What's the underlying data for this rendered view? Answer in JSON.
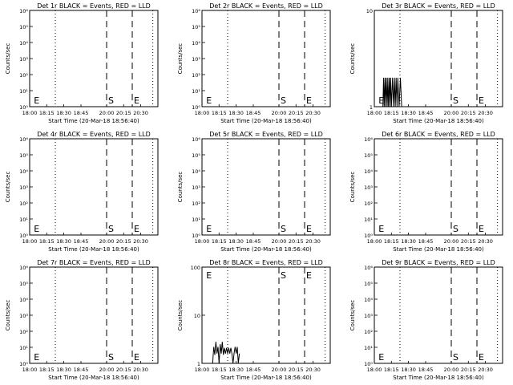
{
  "colors": {
    "background": "#ffffff",
    "axis": "#000000",
    "events": "#000000",
    "lld": "#ff0000"
  },
  "xtick_labels": [
    "18:00",
    "18:15",
    "18:30",
    "18:45",
    "20:00",
    "20:15",
    "20:30"
  ],
  "marker_labels": {
    "start": "E",
    "s": "S",
    "e": "E"
  },
  "chart_data": [
    {
      "id": "p1",
      "type": "line",
      "title": "Det 1r BLACK = Events, RED = LLD",
      "xlabel": "Start Time (20-Mar-18 18:56:40)",
      "ylabel": "Counts/sec",
      "yscale": "log",
      "ytick_labels": [
        "10⁰",
        "10¹",
        "10²",
        "10³",
        "10⁴",
        "10⁵",
        "10⁶"
      ],
      "ylim": [
        1,
        1000000
      ],
      "series": []
    },
    {
      "id": "p2",
      "type": "line",
      "title": "Det 2r BLACK = Events, RED = LLD",
      "xlabel": "Start Time (20-Mar-18 18:56:40)",
      "ylabel": "Counts/sec",
      "yscale": "log",
      "ytick_labels": [
        "10⁰",
        "10¹",
        "10²",
        "10³",
        "10⁴",
        "10⁵",
        "10⁶"
      ],
      "ylim": [
        1,
        1000000
      ],
      "series": []
    },
    {
      "id": "p3",
      "type": "line",
      "title": "Det 3r BLACK = Events, RED = LLD",
      "xlabel": "Start Time (20-Mar-18 18:56:40)",
      "ylabel": "Counts/sec",
      "yscale": "log",
      "ytick_labels": [
        "1",
        "10"
      ],
      "ylim": [
        1,
        10
      ],
      "series": [
        {
          "values": [
            [
              1,
              1
            ],
            [
              4,
              1
            ],
            [
              4.3,
              2
            ],
            [
              4.6,
              1
            ],
            [
              5,
              2
            ],
            [
              5.3,
              1
            ],
            [
              5.6,
              2
            ],
            [
              6,
              1
            ],
            [
              6.3,
              2
            ],
            [
              6.6,
              1
            ],
            [
              7,
              2
            ],
            [
              7.3,
              1
            ],
            [
              7.6,
              2
            ],
            [
              8,
              1
            ],
            [
              8.5,
              2
            ],
            [
              9,
              1
            ],
            [
              9.4,
              2
            ],
            [
              9.8,
              1
            ],
            [
              10.2,
              2
            ],
            [
              10.6,
              1
            ],
            [
              11,
              2
            ],
            [
              11.6,
              1
            ],
            [
              12.2,
              2
            ],
            [
              12.8,
              1
            ]
          ]
        }
      ]
    },
    {
      "id": "p4",
      "type": "line",
      "title": "Det 4r BLACK = Events, RED = LLD",
      "xlabel": "Start Time (20-Mar-18 18:56:40)",
      "ylabel": "Counts/sec",
      "yscale": "log",
      "ytick_labels": [
        "10⁰",
        "10¹",
        "10²",
        "10³",
        "10⁴",
        "10⁵",
        "10⁶"
      ],
      "ylim": [
        1,
        1000000
      ],
      "series": []
    },
    {
      "id": "p5",
      "type": "line",
      "title": "Det 5r BLACK = Events, RED = LLD",
      "xlabel": "Start Time (20-Mar-18 18:56:40)",
      "ylabel": "Counts/sec",
      "yscale": "log",
      "ytick_labels": [
        "10⁰",
        "10¹",
        "10²",
        "10³",
        "10⁴",
        "10⁵",
        "10⁶"
      ],
      "ylim": [
        1,
        1000000
      ],
      "series": []
    },
    {
      "id": "p6",
      "type": "line",
      "title": "Det 6r BLACK = Events, RED = LLD",
      "xlabel": "Start Time (20-Mar-18 18:56:40)",
      "ylabel": "Counts/sec",
      "yscale": "log",
      "ytick_labels": [
        "10⁰",
        "10¹",
        "10²",
        "10³",
        "10⁴",
        "10⁵",
        "10⁶"
      ],
      "ylim": [
        1,
        1000000
      ],
      "series": []
    },
    {
      "id": "p7",
      "type": "line",
      "title": "Det 7r BLACK = Events, RED = LLD",
      "xlabel": "Start Time (20-Mar-18 18:56:40)",
      "ylabel": "Counts/sec",
      "yscale": "log",
      "ytick_labels": [
        "10⁰",
        "10¹",
        "10²",
        "10³",
        "10⁴",
        "10⁵",
        "10⁶"
      ],
      "ylim": [
        1,
        1000000
      ],
      "series": []
    },
    {
      "id": "p8",
      "type": "line",
      "title": "Det 8r BLACK = Events, RED = LLD",
      "xlabel": "Start Time (20-Mar-18 18:56:40)",
      "ylabel": "Counts/sec",
      "yscale": "log",
      "ytick_labels": [
        "1",
        "10",
        "100"
      ],
      "ylim": [
        1,
        100
      ],
      "series": [
        {
          "values": [
            [
              5,
              1
            ],
            [
              5.5,
              2.2
            ],
            [
              6,
              1.5
            ],
            [
              6.5,
              2.8
            ],
            [
              7,
              1.6
            ],
            [
              7.5,
              2.2
            ],
            [
              8,
              1
            ],
            [
              8.5,
              2.5
            ],
            [
              9,
              1.6
            ],
            [
              9.5,
              2.8
            ],
            [
              10,
              1.5
            ],
            [
              10.5,
              2.1
            ],
            [
              11,
              1.6
            ],
            [
              11.5,
              2.1
            ],
            [
              12,
              1.6
            ],
            [
              12.5,
              2.1
            ],
            [
              13,
              1.6
            ],
            [
              13.5,
              2.1
            ],
            [
              14,
              1.6
            ],
            [
              14.5,
              1
            ],
            [
              15,
              1.6
            ],
            [
              15.5,
              2.2
            ],
            [
              16,
              1.6
            ],
            [
              16.5,
              2.2
            ],
            [
              17,
              1
            ],
            [
              17.5,
              1.6
            ]
          ]
        }
      ]
    },
    {
      "id": "p9",
      "type": "line",
      "title": "Det 9r BLACK = Events, RED = LLD",
      "xlabel": "Start Time (20-Mar-18 18:56:40)",
      "ylabel": "Counts/sec",
      "yscale": "log",
      "ytick_labels": [
        "10⁰",
        "10¹",
        "10²",
        "10³",
        "10⁴",
        "10⁵",
        "10⁶"
      ],
      "ylim": [
        1,
        1000000
      ],
      "series": []
    }
  ]
}
